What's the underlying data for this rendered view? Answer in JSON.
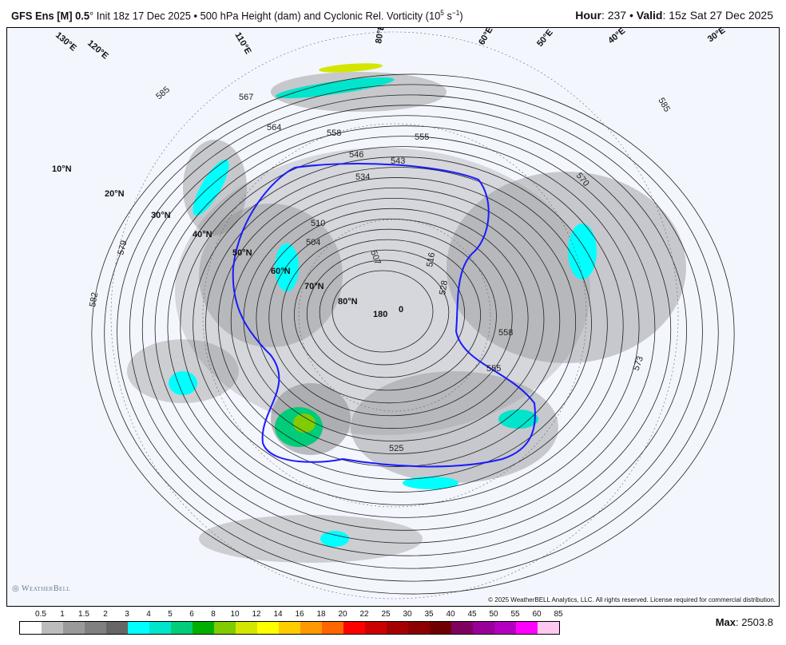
{
  "header": {
    "model": "GFS Ens [M] 0.5",
    "degree": "°",
    "init": " Init 18z 17 Dec 2025 • 500 hPa Height (dam) and Cyclonic Rel. Vorticity (10",
    "exp": "5",
    "unit": " s",
    "unit_exp": "−1",
    "close": ")",
    "hour_label": "Hour",
    "hour": ": 237 • ",
    "valid_label": "Valid",
    "valid": ": 15z Sat 27 Dec 2025"
  },
  "map": {
    "lat_labels": [
      "10°N",
      "20°N",
      "30°N",
      "40°N",
      "50°N",
      "60°N",
      "70°N",
      "80°N"
    ],
    "lon_labels": [
      "180",
      "0",
      "120°E",
      "130°E",
      "110°E",
      "80°E",
      "60°E",
      "50°E",
      "40°E",
      "30°E"
    ],
    "contour_labels": [
      "585",
      "579",
      "582",
      "573",
      "570",
      "567",
      "564",
      "558",
      "558",
      "546",
      "543",
      "534",
      "510",
      "504",
      "507",
      "525",
      "528",
      "516",
      "555",
      "555",
      "585"
    ],
    "highlight_contour": "540",
    "colors": {
      "contour": "#222222",
      "highlight": "#1a1aff",
      "background": "#f3f6fd"
    },
    "copyright": "© 2025 WeatherBELL Analytics, LLC. All rights reserved. License required for commercial distribution.",
    "logo": "WeatherBELL"
  },
  "colorbar": {
    "ticks": [
      "0.5",
      "1",
      "1.5",
      "2",
      "3",
      "4",
      "5",
      "6",
      "8",
      "10",
      "12",
      "14",
      "16",
      "18",
      "20",
      "22",
      "25",
      "30",
      "35",
      "40",
      "45",
      "50",
      "55",
      "60",
      "85"
    ],
    "colors": [
      "#ffffff",
      "#bdbdbd",
      "#9a9a9a",
      "#808080",
      "#666666",
      "#00ffff",
      "#00e5cc",
      "#00cc7a",
      "#00b000",
      "#80cc00",
      "#d4e600",
      "#ffff00",
      "#ffcc00",
      "#ff9900",
      "#ff6600",
      "#ff0000",
      "#cc0000",
      "#a50000",
      "#8c0000",
      "#700000",
      "#800060",
      "#990099",
      "#b300c0",
      "#ff00ff",
      "#ffc8f0"
    ]
  },
  "max": {
    "label": "Max",
    "value": ": 2503.8"
  }
}
